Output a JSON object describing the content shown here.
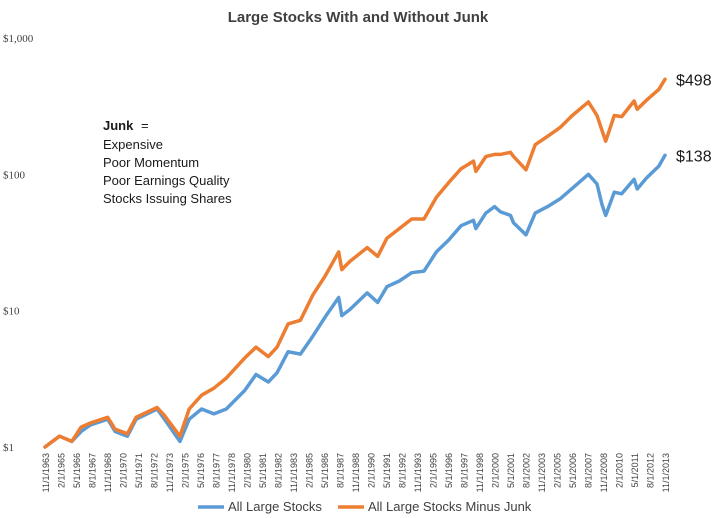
{
  "chart_data": {
    "type": "line",
    "title": "Large Stocks With and Without Junk",
    "y_scale": "log",
    "ylim": [
      1,
      1000
    ],
    "y_ticks": [
      "$1",
      "$10",
      "$100",
      "$1,000"
    ],
    "x_ticks": [
      "11/1/1963",
      "2/1/1965",
      "5/1/1966",
      "8/1/1967",
      "11/1/1968",
      "2/1/1970",
      "5/1/1971",
      "8/1/1972",
      "11/1/1973",
      "2/1/1975",
      "5/1/1976",
      "8/1/1977",
      "11/1/1978",
      "2/1/1980",
      "5/1/1981",
      "8/1/1982",
      "11/1/1983",
      "2/1/1985",
      "5/1/1986",
      "8/1/1987",
      "11/1/1988",
      "2/1/1990",
      "5/1/1991",
      "8/1/1992",
      "11/1/1993",
      "2/1/1995",
      "5/1/1996",
      "8/1/1997",
      "11/1/1998",
      "2/1/2000",
      "5/1/2001",
      "8/1/2002",
      "11/1/2003",
      "2/1/2005",
      "5/1/2006",
      "8/1/2007",
      "11/1/2008",
      "2/1/2010",
      "5/1/2011",
      "8/1/2012",
      "11/1/2013"
    ],
    "x": [
      1963.83,
      1965.0,
      1966.0,
      1966.75,
      1967.5,
      1968.9,
      1969.5,
      1970.5,
      1971.2,
      1972.9,
      1973.5,
      1974.75,
      1975.5,
      1976.5,
      1977.5,
      1978.5,
      1980.0,
      1980.9,
      1981.9,
      1982.6,
      1983.5,
      1984.5,
      1985.5,
      1986.5,
      1987.6,
      1987.85,
      1988.5,
      1989.9,
      1990.75,
      1991.5,
      1992.5,
      1993.5,
      1994.5,
      1995.5,
      1996.5,
      1997.5,
      1998.5,
      1998.7,
      1999.5,
      2000.2,
      2000.7,
      2001.5,
      2001.75,
      2002.75,
      2003.5,
      2004.5,
      2005.5,
      2006.5,
      2007.8,
      2008.5,
      2008.9,
      2009.2,
      2009.9,
      2010.5,
      2011.5,
      2011.75,
      2012.5,
      2013.5,
      2014.0
    ],
    "series": [
      {
        "name": "All Large Stocks",
        "color": "#5B9BD5",
        "values": [
          1.0,
          1.2,
          1.1,
          1.3,
          1.45,
          1.6,
          1.3,
          1.2,
          1.6,
          1.9,
          1.6,
          1.1,
          1.6,
          1.9,
          1.75,
          1.9,
          2.6,
          3.4,
          3.0,
          3.5,
          5.0,
          4.8,
          6.5,
          9.0,
          12.5,
          9.2,
          10.2,
          13.5,
          11.5,
          15.0,
          16.5,
          19.0,
          19.5,
          27.0,
          33.0,
          42.0,
          46.0,
          40.0,
          52.0,
          58.0,
          53.0,
          50.0,
          44.0,
          36.0,
          52.0,
          58.0,
          66.0,
          79.0,
          100.0,
          85.0,
          60.0,
          50.0,
          74.0,
          72.0,
          92.0,
          78.0,
          94.0,
          115.0,
          138.0
        ]
      },
      {
        "name": "All Large Stocks Minus Junk",
        "color": "#ED7D31",
        "values": [
          1.0,
          1.2,
          1.1,
          1.4,
          1.5,
          1.65,
          1.35,
          1.25,
          1.65,
          1.95,
          1.7,
          1.2,
          1.9,
          2.4,
          2.7,
          3.2,
          4.5,
          5.4,
          4.6,
          5.4,
          8.0,
          8.5,
          13.0,
          18.0,
          27.0,
          20.0,
          23.0,
          29.0,
          25.0,
          34.0,
          40.0,
          47.0,
          47.0,
          68.0,
          87.0,
          110.0,
          125.0,
          105.0,
          135.0,
          140.0,
          140.0,
          145.0,
          135.0,
          108.0,
          165.0,
          190.0,
          220.0,
          270.0,
          340.0,
          270.0,
          210.0,
          175.0,
          270.0,
          265.0,
          345.0,
          300.0,
          350.0,
          420.0,
          498.0
        ]
      }
    ],
    "end_labels": [
      "$498",
      "$138"
    ],
    "annotation": {
      "title": "Junk",
      "suffix": "=",
      "lines": [
        "Expensive",
        "Poor Momentum",
        "Poor Earnings Quality",
        "Stocks Issuing Shares"
      ]
    },
    "legend_position": "bottom",
    "grid": false
  }
}
